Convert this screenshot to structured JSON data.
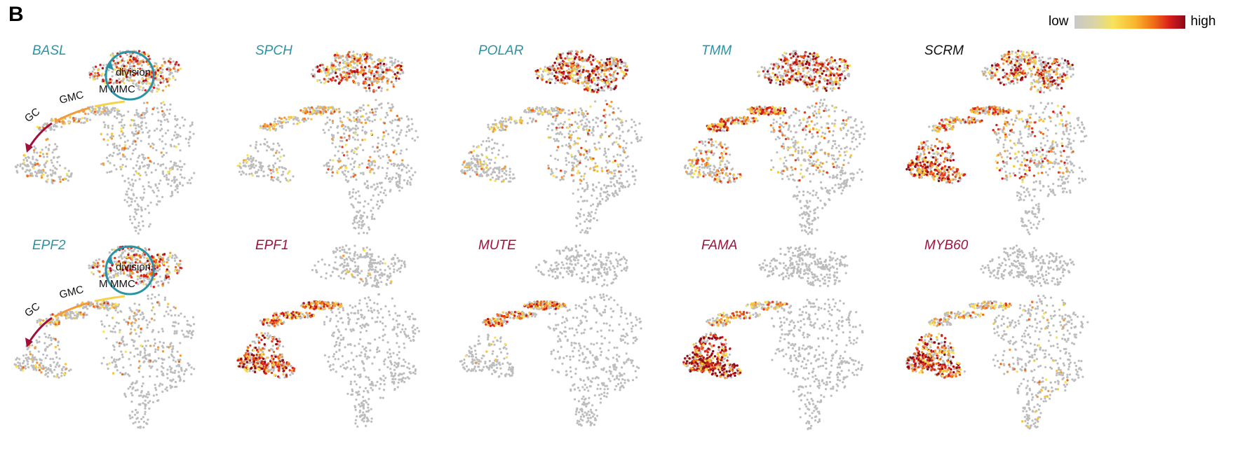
{
  "panel_letter": "B",
  "legend": {
    "low": "low",
    "high": "high"
  },
  "colors": {
    "teal": "#2b93a5",
    "crimson": "#a10f3a",
    "black": "#111111",
    "orange": "#f39a3a",
    "yellow": "#f4d24a"
  },
  "annotation": {
    "division": "division",
    "mmc": "MMC",
    "m": "M",
    "gmc": "GMC",
    "gc": "GC"
  },
  "panels": [
    {
      "gene": "BASL",
      "color": "teal",
      "annotated": true,
      "hot": [
        [
          "top",
          1.0
        ],
        [
          "left",
          0.15
        ],
        [
          "center",
          0.2
        ],
        [
          "bridge",
          0.2
        ]
      ]
    },
    {
      "gene": "SPCH",
      "color": "teal",
      "annotated": false,
      "hot": [
        [
          "top",
          1.2
        ],
        [
          "center",
          0.4
        ],
        [
          "bridge",
          0.4
        ],
        [
          "left",
          0.1
        ]
      ]
    },
    {
      "gene": "POLAR",
      "color": "teal",
      "annotated": false,
      "hot": [
        [
          "top",
          1.6
        ],
        [
          "center",
          0.5
        ],
        [
          "bridge",
          0.2
        ],
        [
          "left",
          0.15
        ]
      ]
    },
    {
      "gene": "TMM",
      "color": "teal",
      "annotated": false,
      "hot": [
        [
          "top",
          1.4
        ],
        [
          "bridge",
          1.0
        ],
        [
          "center",
          0.5
        ],
        [
          "left",
          0.5
        ]
      ]
    },
    {
      "gene": "SCRM",
      "color": "black",
      "annotated": false,
      "hot": [
        [
          "top",
          1.3
        ],
        [
          "left",
          1.3
        ],
        [
          "center",
          0.7
        ],
        [
          "bridge",
          0.7
        ]
      ]
    },
    {
      "gene": "EPF2",
      "color": "teal",
      "annotated": true,
      "hot": [
        [
          "top",
          1.0
        ],
        [
          "left",
          0.15
        ],
        [
          "center",
          0.2
        ],
        [
          "bridge",
          0.3
        ]
      ]
    },
    {
      "gene": "EPF1",
      "color": "crimson",
      "annotated": false,
      "hot": [
        [
          "left",
          1.3
        ],
        [
          "bridge",
          1.0
        ],
        [
          "top",
          0.05
        ]
      ]
    },
    {
      "gene": "MUTE",
      "color": "crimson",
      "annotated": false,
      "hot": [
        [
          "bridge",
          0.9
        ],
        [
          "left",
          0.05
        ]
      ]
    },
    {
      "gene": "FAMA",
      "color": "crimson",
      "annotated": false,
      "hot": [
        [
          "left",
          1.8
        ],
        [
          "bridge",
          0.5
        ]
      ]
    },
    {
      "gene": "MYB60",
      "color": "crimson",
      "annotated": false,
      "hot": [
        [
          "left",
          1.6
        ],
        [
          "bridge",
          0.4
        ],
        [
          "center",
          0.15
        ],
        [
          "bottom",
          0.1
        ]
      ]
    }
  ]
}
